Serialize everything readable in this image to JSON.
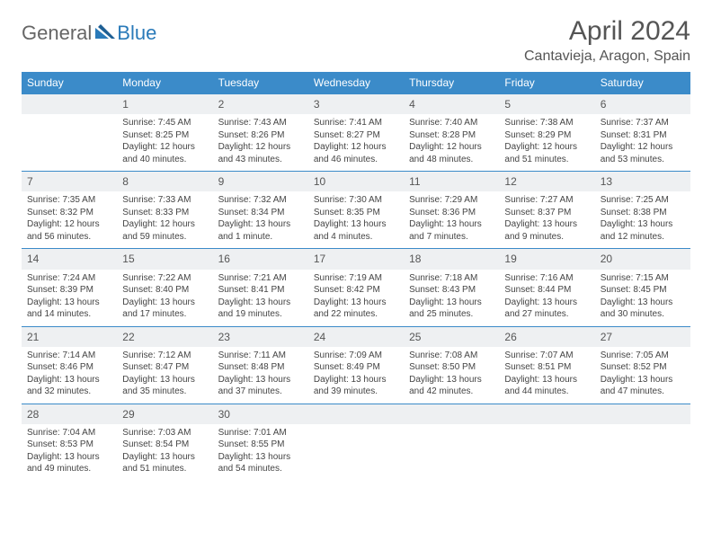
{
  "logo": {
    "text1": "General",
    "text2": "Blue"
  },
  "title": "April 2024",
  "location": "Cantavieja, Aragon, Spain",
  "colors": {
    "header_bg": "#3b8bc9",
    "header_text": "#ffffff",
    "daynum_bg": "#eef0f2",
    "border": "#3b8bc9",
    "text": "#444444",
    "logo_gray": "#666666",
    "logo_blue": "#2a7ab9",
    "page_bg": "#ffffff"
  },
  "fonts": {
    "title_size": 30,
    "location_size": 16,
    "head_size": 12,
    "cell_size": 10
  },
  "day_headers": [
    "Sunday",
    "Monday",
    "Tuesday",
    "Wednesday",
    "Thursday",
    "Friday",
    "Saturday"
  ],
  "weeks": [
    {
      "nums": [
        "",
        "1",
        "2",
        "3",
        "4",
        "5",
        "6"
      ],
      "cells": [
        null,
        {
          "sunrise": "Sunrise: 7:45 AM",
          "sunset": "Sunset: 8:25 PM",
          "daylight": "Daylight: 12 hours and 40 minutes."
        },
        {
          "sunrise": "Sunrise: 7:43 AM",
          "sunset": "Sunset: 8:26 PM",
          "daylight": "Daylight: 12 hours and 43 minutes."
        },
        {
          "sunrise": "Sunrise: 7:41 AM",
          "sunset": "Sunset: 8:27 PM",
          "daylight": "Daylight: 12 hours and 46 minutes."
        },
        {
          "sunrise": "Sunrise: 7:40 AM",
          "sunset": "Sunset: 8:28 PM",
          "daylight": "Daylight: 12 hours and 48 minutes."
        },
        {
          "sunrise": "Sunrise: 7:38 AM",
          "sunset": "Sunset: 8:29 PM",
          "daylight": "Daylight: 12 hours and 51 minutes."
        },
        {
          "sunrise": "Sunrise: 7:37 AM",
          "sunset": "Sunset: 8:31 PM",
          "daylight": "Daylight: 12 hours and 53 minutes."
        }
      ]
    },
    {
      "nums": [
        "7",
        "8",
        "9",
        "10",
        "11",
        "12",
        "13"
      ],
      "cells": [
        {
          "sunrise": "Sunrise: 7:35 AM",
          "sunset": "Sunset: 8:32 PM",
          "daylight": "Daylight: 12 hours and 56 minutes."
        },
        {
          "sunrise": "Sunrise: 7:33 AM",
          "sunset": "Sunset: 8:33 PM",
          "daylight": "Daylight: 12 hours and 59 minutes."
        },
        {
          "sunrise": "Sunrise: 7:32 AM",
          "sunset": "Sunset: 8:34 PM",
          "daylight": "Daylight: 13 hours and 1 minute."
        },
        {
          "sunrise": "Sunrise: 7:30 AM",
          "sunset": "Sunset: 8:35 PM",
          "daylight": "Daylight: 13 hours and 4 minutes."
        },
        {
          "sunrise": "Sunrise: 7:29 AM",
          "sunset": "Sunset: 8:36 PM",
          "daylight": "Daylight: 13 hours and 7 minutes."
        },
        {
          "sunrise": "Sunrise: 7:27 AM",
          "sunset": "Sunset: 8:37 PM",
          "daylight": "Daylight: 13 hours and 9 minutes."
        },
        {
          "sunrise": "Sunrise: 7:25 AM",
          "sunset": "Sunset: 8:38 PM",
          "daylight": "Daylight: 13 hours and 12 minutes."
        }
      ]
    },
    {
      "nums": [
        "14",
        "15",
        "16",
        "17",
        "18",
        "19",
        "20"
      ],
      "cells": [
        {
          "sunrise": "Sunrise: 7:24 AM",
          "sunset": "Sunset: 8:39 PM",
          "daylight": "Daylight: 13 hours and 14 minutes."
        },
        {
          "sunrise": "Sunrise: 7:22 AM",
          "sunset": "Sunset: 8:40 PM",
          "daylight": "Daylight: 13 hours and 17 minutes."
        },
        {
          "sunrise": "Sunrise: 7:21 AM",
          "sunset": "Sunset: 8:41 PM",
          "daylight": "Daylight: 13 hours and 19 minutes."
        },
        {
          "sunrise": "Sunrise: 7:19 AM",
          "sunset": "Sunset: 8:42 PM",
          "daylight": "Daylight: 13 hours and 22 minutes."
        },
        {
          "sunrise": "Sunrise: 7:18 AM",
          "sunset": "Sunset: 8:43 PM",
          "daylight": "Daylight: 13 hours and 25 minutes."
        },
        {
          "sunrise": "Sunrise: 7:16 AM",
          "sunset": "Sunset: 8:44 PM",
          "daylight": "Daylight: 13 hours and 27 minutes."
        },
        {
          "sunrise": "Sunrise: 7:15 AM",
          "sunset": "Sunset: 8:45 PM",
          "daylight": "Daylight: 13 hours and 30 minutes."
        }
      ]
    },
    {
      "nums": [
        "21",
        "22",
        "23",
        "24",
        "25",
        "26",
        "27"
      ],
      "cells": [
        {
          "sunrise": "Sunrise: 7:14 AM",
          "sunset": "Sunset: 8:46 PM",
          "daylight": "Daylight: 13 hours and 32 minutes."
        },
        {
          "sunrise": "Sunrise: 7:12 AM",
          "sunset": "Sunset: 8:47 PM",
          "daylight": "Daylight: 13 hours and 35 minutes."
        },
        {
          "sunrise": "Sunrise: 7:11 AM",
          "sunset": "Sunset: 8:48 PM",
          "daylight": "Daylight: 13 hours and 37 minutes."
        },
        {
          "sunrise": "Sunrise: 7:09 AM",
          "sunset": "Sunset: 8:49 PM",
          "daylight": "Daylight: 13 hours and 39 minutes."
        },
        {
          "sunrise": "Sunrise: 7:08 AM",
          "sunset": "Sunset: 8:50 PM",
          "daylight": "Daylight: 13 hours and 42 minutes."
        },
        {
          "sunrise": "Sunrise: 7:07 AM",
          "sunset": "Sunset: 8:51 PM",
          "daylight": "Daylight: 13 hours and 44 minutes."
        },
        {
          "sunrise": "Sunrise: 7:05 AM",
          "sunset": "Sunset: 8:52 PM",
          "daylight": "Daylight: 13 hours and 47 minutes."
        }
      ]
    },
    {
      "nums": [
        "28",
        "29",
        "30",
        "",
        "",
        "",
        ""
      ],
      "cells": [
        {
          "sunrise": "Sunrise: 7:04 AM",
          "sunset": "Sunset: 8:53 PM",
          "daylight": "Daylight: 13 hours and 49 minutes."
        },
        {
          "sunrise": "Sunrise: 7:03 AM",
          "sunset": "Sunset: 8:54 PM",
          "daylight": "Daylight: 13 hours and 51 minutes."
        },
        {
          "sunrise": "Sunrise: 7:01 AM",
          "sunset": "Sunset: 8:55 PM",
          "daylight": "Daylight: 13 hours and 54 minutes."
        },
        null,
        null,
        null,
        null
      ]
    }
  ]
}
